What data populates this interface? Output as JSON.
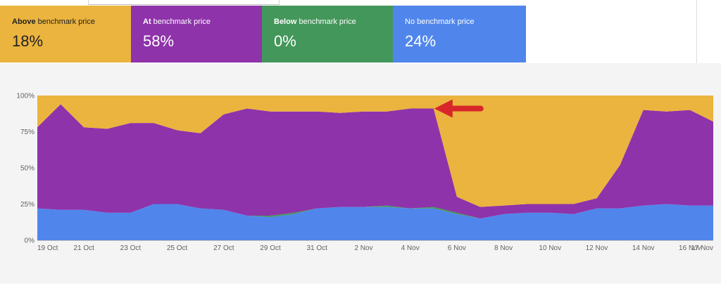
{
  "cards": [
    {
      "bold": "Above",
      "rest": " benchmark price",
      "value": "18%",
      "color": "#ebb43e"
    },
    {
      "bold": "At",
      "rest": " benchmark price",
      "value": "58%",
      "color": "#8e33aa"
    },
    {
      "bold": "Below",
      "rest": " benchmark price",
      "value": "0%",
      "color": "#43975a"
    },
    {
      "bold": "",
      "rest": "No benchmark price",
      "value": "24%",
      "color": "#5086ec"
    }
  ],
  "chart_data": {
    "type": "area",
    "stacked": true,
    "x": [
      "19 Oct",
      "20 Oct",
      "21 Oct",
      "22 Oct",
      "23 Oct",
      "24 Oct",
      "25 Oct",
      "26 Oct",
      "27 Oct",
      "28 Oct",
      "29 Oct",
      "30 Oct",
      "31 Oct",
      "1 Nov",
      "2 Nov",
      "3 Nov",
      "4 Nov",
      "5 Nov",
      "6 Nov",
      "7 Nov",
      "8 Nov",
      "9 Nov",
      "10 Nov",
      "11 Nov",
      "12 Nov",
      "13 Nov",
      "14 Nov",
      "15 Nov",
      "16 Nov",
      "17 Nov"
    ],
    "xtick_labels": [
      "19 Oct",
      "21 Oct",
      "23 Oct",
      "25 Oct",
      "27 Oct",
      "29 Oct",
      "31 Oct",
      "2 Nov",
      "4 Nov",
      "6 Nov",
      "8 Nov",
      "10 Nov",
      "12 Nov",
      "14 Nov",
      "16 Nov",
      "17 Nov"
    ],
    "ytick_labels": [
      "0%",
      "25%",
      "50%",
      "75%",
      "100%"
    ],
    "ylim": [
      0,
      100
    ],
    "series": [
      {
        "key": "none",
        "color": "#5086ec",
        "values": [
          22,
          21,
          21,
          19,
          19,
          25,
          25,
          22,
          21,
          17,
          16,
          18,
          22,
          23,
          23,
          23,
          22,
          22,
          18,
          15,
          18,
          19,
          19,
          18,
          22,
          22,
          24,
          25,
          24,
          24
        ]
      },
      {
        "key": "below",
        "color": "#43975a",
        "values": [
          0,
          0,
          0,
          0,
          0,
          0,
          0,
          0,
          0,
          0,
          1,
          1,
          0,
          0,
          0,
          1,
          0,
          1,
          1,
          0,
          0,
          0,
          0,
          0,
          0,
          0,
          0,
          0,
          0,
          0
        ]
      },
      {
        "key": "at",
        "color": "#8e33aa",
        "values": [
          56,
          73,
          57,
          58,
          62,
          56,
          51,
          52,
          66,
          74,
          72,
          70,
          67,
          65,
          66,
          65,
          69,
          68,
          11,
          8,
          6,
          6,
          6,
          7,
          7,
          30,
          66,
          64,
          66,
          58
        ]
      },
      {
        "key": "above",
        "color": "#ebb43e",
        "values": [
          22,
          6,
          22,
          23,
          19,
          19,
          24,
          26,
          13,
          9,
          11,
          11,
          11,
          12,
          11,
          11,
          9,
          9,
          70,
          77,
          76,
          75,
          75,
          75,
          71,
          48,
          10,
          11,
          10,
          18
        ]
      }
    ],
    "annotation": {
      "type": "arrow",
      "color": "#d8262a",
      "x": "5 Nov",
      "y": 91
    }
  }
}
